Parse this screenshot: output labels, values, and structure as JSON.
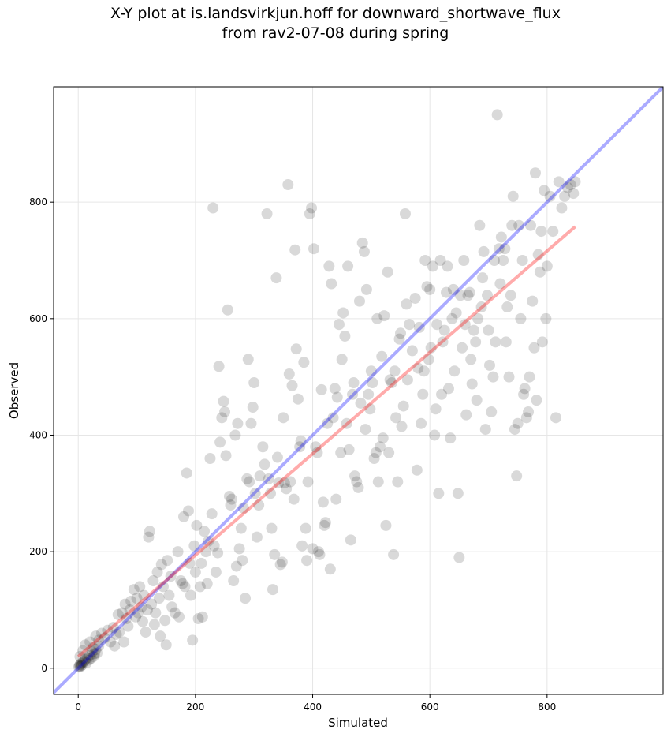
{
  "chart_data": {
    "type": "scatter",
    "title": "X-Y plot at is.landsvirkjun.hoff for downward_shortwave_flux",
    "subtitle": "from rav2-07-08 during spring",
    "xlabel": "Simulated",
    "ylabel": "Observed",
    "xlim": [
      -42,
      998
    ],
    "ylim": [
      -45,
      998
    ],
    "xticks": [
      0,
      200,
      400,
      600,
      800
    ],
    "yticks": [
      0,
      200,
      400,
      600,
      800
    ],
    "grid": true,
    "point_color": "#000000",
    "point_opacity": 0.15,
    "identity_line": {
      "color": "#0000ff",
      "opacity": 0.33,
      "from": [
        -42,
        -42
      ],
      "to": [
        998,
        998
      ]
    },
    "fit_line": {
      "color": "#ff0000",
      "opacity": 0.33,
      "from": [
        0,
        20
      ],
      "to": [
        848,
        758
      ]
    },
    "points": [
      [
        1,
        2
      ],
      [
        2,
        4
      ],
      [
        3,
        6
      ],
      [
        4,
        3
      ],
      [
        5,
        8
      ],
      [
        6,
        5
      ],
      [
        8,
        10
      ],
      [
        10,
        12
      ],
      [
        12,
        15
      ],
      [
        14,
        9
      ],
      [
        16,
        18
      ],
      [
        18,
        14
      ],
      [
        20,
        22
      ],
      [
        22,
        17
      ],
      [
        24,
        28
      ],
      [
        26,
        20
      ],
      [
        28,
        25
      ],
      [
        30,
        32
      ],
      [
        32,
        26
      ],
      [
        35,
        38
      ],
      [
        3,
        20
      ],
      [
        8,
        30
      ],
      [
        12,
        40
      ],
      [
        20,
        45
      ],
      [
        25,
        35
      ],
      [
        30,
        55
      ],
      [
        35,
        48
      ],
      [
        40,
        60
      ],
      [
        45,
        52
      ],
      [
        50,
        65
      ],
      [
        55,
        45
      ],
      [
        60,
        70
      ],
      [
        62,
        38
      ],
      [
        65,
        58
      ],
      [
        68,
        92
      ],
      [
        70,
        62
      ],
      [
        75,
        95
      ],
      [
        78,
        45
      ],
      [
        80,
        110
      ],
      [
        82,
        85
      ],
      [
        85,
        72
      ],
      [
        88,
        100
      ],
      [
        90,
        115
      ],
      [
        95,
        135
      ],
      [
        98,
        88
      ],
      [
        100,
        120
      ],
      [
        102,
        95
      ],
      [
        105,
        140
      ],
      [
        108,
        105
      ],
      [
        110,
        80
      ],
      [
        112,
        125
      ],
      [
        115,
        62
      ],
      [
        118,
        100
      ],
      [
        120,
        225
      ],
      [
        122,
        235
      ],
      [
        125,
        110
      ],
      [
        128,
        150
      ],
      [
        130,
        75
      ],
      [
        132,
        95
      ],
      [
        135,
        165
      ],
      [
        138,
        120
      ],
      [
        140,
        55
      ],
      [
        142,
        178
      ],
      [
        145,
        140
      ],
      [
        148,
        82
      ],
      [
        150,
        40
      ],
      [
        152,
        185
      ],
      [
        155,
        125
      ],
      [
        158,
        158
      ],
      [
        160,
        105
      ],
      [
        165,
        95
      ],
      [
        170,
        200
      ],
      [
        172,
        88
      ],
      [
        175,
        150
      ],
      [
        178,
        145
      ],
      [
        180,
        260
      ],
      [
        182,
        140
      ],
      [
        185,
        335
      ],
      [
        188,
        270
      ],
      [
        190,
        180
      ],
      [
        192,
        125
      ],
      [
        195,
        48
      ],
      [
        198,
        210
      ],
      [
        200,
        165
      ],
      [
        202,
        245
      ],
      [
        205,
        85
      ],
      [
        208,
        140
      ],
      [
        210,
        180
      ],
      [
        212,
        88
      ],
      [
        215,
        235
      ],
      [
        218,
        200
      ],
      [
        220,
        145
      ],
      [
        222,
        218
      ],
      [
        225,
        360
      ],
      [
        228,
        265
      ],
      [
        230,
        790
      ],
      [
        232,
        210
      ],
      [
        235,
        165
      ],
      [
        238,
        198
      ],
      [
        240,
        518
      ],
      [
        242,
        388
      ],
      [
        245,
        430
      ],
      [
        248,
        458
      ],
      [
        250,
        440
      ],
      [
        252,
        365
      ],
      [
        255,
        615
      ],
      [
        258,
        295
      ],
      [
        260,
        280
      ],
      [
        262,
        290
      ],
      [
        265,
        150
      ],
      [
        268,
        400
      ],
      [
        270,
        175
      ],
      [
        272,
        420
      ],
      [
        275,
        205
      ],
      [
        278,
        240
      ],
      [
        280,
        185
      ],
      [
        282,
        275
      ],
      [
        285,
        120
      ],
      [
        288,
        325
      ],
      [
        290,
        530
      ],
      [
        292,
        320
      ],
      [
        295,
        420
      ],
      [
        298,
        448
      ],
      [
        300,
        490
      ],
      [
        302,
        300
      ],
      [
        305,
        225
      ],
      [
        308,
        280
      ],
      [
        310,
        330
      ],
      [
        315,
        380
      ],
      [
        318,
        350
      ],
      [
        322,
        780
      ],
      [
        325,
        325
      ],
      [
        328,
        300
      ],
      [
        330,
        240
      ],
      [
        332,
        135
      ],
      [
        335,
        195
      ],
      [
        338,
        670
      ],
      [
        340,
        362
      ],
      [
        342,
        318
      ],
      [
        345,
        178
      ],
      [
        348,
        182
      ],
      [
        350,
        430
      ],
      [
        352,
        318
      ],
      [
        355,
        308
      ],
      [
        358,
        830
      ],
      [
        360,
        505
      ],
      [
        362,
        320
      ],
      [
        365,
        485
      ],
      [
        368,
        290
      ],
      [
        370,
        718
      ],
      [
        372,
        548
      ],
      [
        375,
        462
      ],
      [
        378,
        380
      ],
      [
        380,
        390
      ],
      [
        382,
        210
      ],
      [
        385,
        525
      ],
      [
        388,
        240
      ],
      [
        390,
        185
      ],
      [
        392,
        320
      ],
      [
        395,
        780
      ],
      [
        398,
        790
      ],
      [
        400,
        205
      ],
      [
        402,
        720
      ],
      [
        405,
        380
      ],
      [
        408,
        370
      ],
      [
        410,
        200
      ],
      [
        412,
        195
      ],
      [
        415,
        478
      ],
      [
        418,
        285
      ],
      [
        420,
        245
      ],
      [
        422,
        250
      ],
      [
        425,
        420
      ],
      [
        428,
        690
      ],
      [
        430,
        170
      ],
      [
        432,
        660
      ],
      [
        435,
        430
      ],
      [
        438,
        480
      ],
      [
        440,
        290
      ],
      [
        442,
        465
      ],
      [
        445,
        590
      ],
      [
        448,
        370
      ],
      [
        450,
        530
      ],
      [
        452,
        610
      ],
      [
        455,
        570
      ],
      [
        458,
        420
      ],
      [
        460,
        690
      ],
      [
        462,
        375
      ],
      [
        465,
        220
      ],
      [
        468,
        470
      ],
      [
        470,
        490
      ],
      [
        472,
        330
      ],
      [
        475,
        320
      ],
      [
        478,
        310
      ],
      [
        480,
        630
      ],
      [
        482,
        455
      ],
      [
        485,
        730
      ],
      [
        488,
        715
      ],
      [
        490,
        410
      ],
      [
        492,
        650
      ],
      [
        495,
        470
      ],
      [
        498,
        445
      ],
      [
        500,
        510
      ],
      [
        502,
        490
      ],
      [
        505,
        360
      ],
      [
        508,
        370
      ],
      [
        510,
        600
      ],
      [
        512,
        320
      ],
      [
        515,
        380
      ],
      [
        518,
        535
      ],
      [
        520,
        395
      ],
      [
        522,
        605
      ],
      [
        525,
        245
      ],
      [
        528,
        680
      ],
      [
        530,
        370
      ],
      [
        532,
        495
      ],
      [
        535,
        490
      ],
      [
        538,
        195
      ],
      [
        540,
        510
      ],
      [
        542,
        430
      ],
      [
        545,
        320
      ],
      [
        548,
        565
      ],
      [
        550,
        575
      ],
      [
        552,
        415
      ],
      [
        555,
        450
      ],
      [
        558,
        780
      ],
      [
        560,
        625
      ],
      [
        562,
        495
      ],
      [
        565,
        590
      ],
      [
        570,
        545
      ],
      [
        575,
        635
      ],
      [
        578,
        340
      ],
      [
        580,
        515
      ],
      [
        582,
        585
      ],
      [
        585,
        420
      ],
      [
        588,
        470
      ],
      [
        590,
        510
      ],
      [
        592,
        700
      ],
      [
        595,
        655
      ],
      [
        598,
        530
      ],
      [
        600,
        650
      ],
      [
        602,
        550
      ],
      [
        605,
        690
      ],
      [
        608,
        400
      ],
      [
        610,
        445
      ],
      [
        612,
        590
      ],
      [
        615,
        300
      ],
      [
        618,
        700
      ],
      [
        620,
        470
      ],
      [
        622,
        560
      ],
      [
        625,
        580
      ],
      [
        628,
        645
      ],
      [
        630,
        690
      ],
      [
        632,
        480
      ],
      [
        635,
        395
      ],
      [
        638,
        600
      ],
      [
        640,
        650
      ],
      [
        642,
        510
      ],
      [
        645,
        610
      ],
      [
        648,
        300
      ],
      [
        650,
        190
      ],
      [
        652,
        640
      ],
      [
        655,
        550
      ],
      [
        658,
        700
      ],
      [
        660,
        590
      ],
      [
        662,
        435
      ],
      [
        665,
        640
      ],
      [
        668,
        645
      ],
      [
        670,
        530
      ],
      [
        672,
        488
      ],
      [
        675,
        580
      ],
      [
        678,
        560
      ],
      [
        680,
        460
      ],
      [
        682,
        600
      ],
      [
        685,
        760
      ],
      [
        688,
        620
      ],
      [
        690,
        670
      ],
      [
        692,
        715
      ],
      [
        695,
        410
      ],
      [
        698,
        640
      ],
      [
        700,
        580
      ],
      [
        702,
        520
      ],
      [
        705,
        440
      ],
      [
        708,
        500
      ],
      [
        710,
        700
      ],
      [
        712,
        560
      ],
      [
        715,
        950
      ],
      [
        718,
        720
      ],
      [
        720,
        660
      ],
      [
        722,
        740
      ],
      [
        725,
        700
      ],
      [
        728,
        720
      ],
      [
        730,
        560
      ],
      [
        732,
        620
      ],
      [
        735,
        500
      ],
      [
        738,
        640
      ],
      [
        740,
        760
      ],
      [
        742,
        810
      ],
      [
        745,
        410
      ],
      [
        748,
        330
      ],
      [
        750,
        420
      ],
      [
        752,
        760
      ],
      [
        755,
        600
      ],
      [
        758,
        700
      ],
      [
        760,
        470
      ],
      [
        762,
        480
      ],
      [
        765,
        430
      ],
      [
        768,
        440
      ],
      [
        770,
        500
      ],
      [
        772,
        760
      ],
      [
        775,
        630
      ],
      [
        778,
        550
      ],
      [
        780,
        850
      ],
      [
        782,
        460
      ],
      [
        785,
        710
      ],
      [
        788,
        680
      ],
      [
        790,
        750
      ],
      [
        792,
        560
      ],
      [
        795,
        820
      ],
      [
        798,
        600
      ],
      [
        800,
        690
      ],
      [
        805,
        810
      ],
      [
        810,
        750
      ],
      [
        815,
        430
      ],
      [
        820,
        835
      ],
      [
        825,
        790
      ],
      [
        830,
        810
      ],
      [
        835,
        825
      ],
      [
        840,
        830
      ],
      [
        845,
        815
      ],
      [
        848,
        835
      ]
    ]
  }
}
